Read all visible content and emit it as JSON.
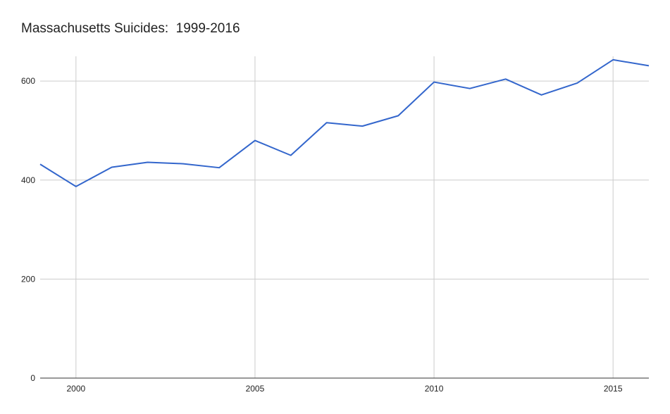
{
  "chart_data": {
    "type": "line",
    "title": "Massachusetts Suicides:  1999-2016",
    "xlabel": "",
    "ylabel": "",
    "x": [
      1999,
      2000,
      2001,
      2002,
      2003,
      2004,
      2005,
      2006,
      2007,
      2008,
      2009,
      2010,
      2011,
      2012,
      2013,
      2014,
      2015,
      2016
    ],
    "series": [
      {
        "values": [
          432,
          387,
          426,
          436,
          433,
          425,
          480,
          450,
          516,
          509,
          530,
          598,
          585,
          604,
          572,
          596,
          643,
          631
        ],
        "color": "#3366cc"
      }
    ],
    "xlim": [
      1999,
      2016
    ],
    "ylim": [
      0,
      650
    ],
    "x_ticks": [
      2000,
      2005,
      2010,
      2015
    ],
    "y_ticks": [
      0,
      200,
      400,
      600
    ],
    "grid": true,
    "legend": "none"
  }
}
